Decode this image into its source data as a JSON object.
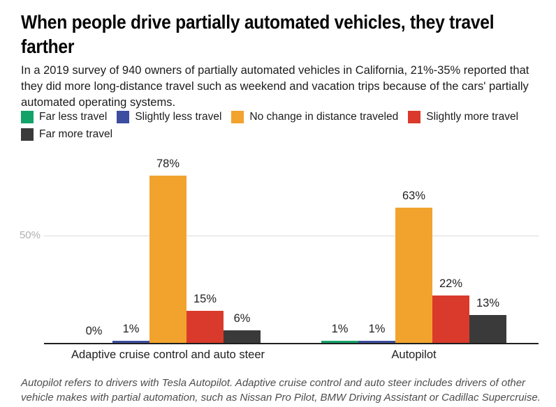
{
  "header": {
    "title": "When people drive partially automated vehicles, they travel\nfarther",
    "subtitle": "In a 2019 survey of 940 owners of partially automated vehicles in California, 21%-35% reported that they did more long-distance travel such as weekend and vacation trips because of the cars' partially automated operating systems."
  },
  "legend": {
    "items": [
      {
        "label": "Far less travel",
        "color": "#13a268"
      },
      {
        "label": "Slightly less travel",
        "color": "#3d4da0"
      },
      {
        "label": "No change in distance traveled",
        "color": "#f2a32e"
      },
      {
        "label": "Slightly more travel",
        "color": "#d93a2b"
      },
      {
        "label": "Far more travel",
        "color": "#3a3a3a"
      }
    ]
  },
  "chart_data": {
    "type": "bar",
    "title": "When people drive partially automated vehicles, they travel farther",
    "categories": [
      "Adaptive cruise control and auto steer",
      "Autopilot"
    ],
    "series": [
      {
        "name": "Far less travel",
        "color": "#13a268",
        "values": [
          0,
          1
        ]
      },
      {
        "name": "Slightly less travel",
        "color": "#3d4da0",
        "values": [
          1,
          1
        ]
      },
      {
        "name": "No change in distance traveled",
        "color": "#f2a32e",
        "values": [
          78,
          63
        ]
      },
      {
        "name": "Slightly more travel",
        "color": "#d93a2b",
        "values": [
          15,
          22
        ]
      },
      {
        "name": "Far more travel",
        "color": "#3a3a3a",
        "values": [
          6,
          13
        ]
      }
    ],
    "value_label_format": "percent",
    "xlabel": "",
    "ylabel": "",
    "y_axis": {
      "min": 0,
      "max": 85,
      "ticks": [
        {
          "label": "50%",
          "value": 50
        }
      ]
    },
    "grid": true,
    "legend_position": "top",
    "colors": {
      "axis": "#1f1f1f",
      "gridline": "#dcdcdc",
      "tick_label": "#b0b0b0",
      "value_label": "#1f1f1f",
      "category_label": "#212121"
    }
  },
  "footer": {
    "note": "Autopilot refers to drivers with Tesla Autopilot. Adaptive cruise control and auto steer includes drivers of other vehicle makes with partial automation, such as Nissan Pro Pilot, BMW Driving Assistant or Cadillac Supercruise."
  }
}
